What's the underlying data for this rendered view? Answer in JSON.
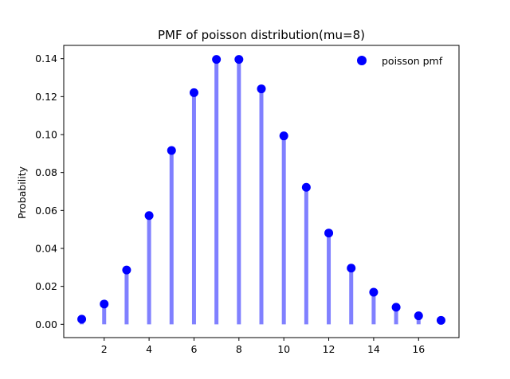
{
  "chart_data": {
    "type": "scatter",
    "title": "PMF of poisson distribution(mu=8)",
    "xlabel": "",
    "ylabel": "Probability",
    "xlim": [
      0.2,
      17.8
    ],
    "ylim": [
      -0.007,
      0.147
    ],
    "xticks": [
      2,
      4,
      6,
      8,
      10,
      12,
      14,
      16
    ],
    "yticks": [
      0.0,
      0.02,
      0.04,
      0.06,
      0.08,
      0.1,
      0.12,
      0.14
    ],
    "ytick_labels": [
      "0.00",
      "0.02",
      "0.04",
      "0.06",
      "0.08",
      "0.10",
      "0.12",
      "0.14"
    ],
    "legend": {
      "entries": [
        "poisson pmf"
      ],
      "position": "top-right"
    },
    "grid": false,
    "series": [
      {
        "name": "poisson pmf",
        "marker_color": "#0000ff",
        "stem_color": "#8080ff",
        "x": [
          1,
          2,
          3,
          4,
          5,
          6,
          7,
          8,
          9,
          10,
          11,
          12,
          13,
          14,
          15,
          16,
          17
        ],
        "values": [
          0.0027,
          0.0107,
          0.0286,
          0.0573,
          0.0916,
          0.1221,
          0.1396,
          0.1396,
          0.1241,
          0.0993,
          0.0722,
          0.0481,
          0.0296,
          0.0169,
          0.009,
          0.0045,
          0.0021
        ]
      }
    ]
  }
}
